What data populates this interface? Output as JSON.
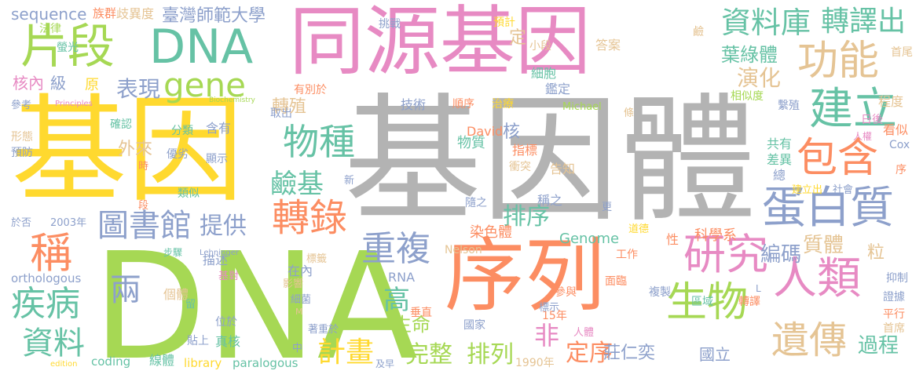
{
  "palette": {
    "gray": "#b3b3b3",
    "yellow": "#ffd92f",
    "green": "#a6d854",
    "orange": "#fc8d62",
    "pink": "#e78ac3",
    "teal": "#66c2a5",
    "blue": "#8da0cb",
    "tan": "#e5c494"
  },
  "words": [
    {
      "text": "基因體",
      "color": "gray"
    },
    {
      "text": "DNA",
      "color": "green"
    },
    {
      "text": "基因",
      "color": "yellow"
    },
    {
      "text": "同源基因",
      "color": "pink"
    },
    {
      "text": "序列",
      "color": "orange"
    },
    {
      "text": "片段",
      "color": "green"
    },
    {
      "text": "DNA",
      "color": "teal"
    },
    {
      "text": "功能",
      "color": "tan"
    },
    {
      "text": "資料庫",
      "color": "teal"
    },
    {
      "text": "轉譯出",
      "color": "teal"
    },
    {
      "text": "建立",
      "color": "teal"
    },
    {
      "text": "gene",
      "color": "green"
    },
    {
      "text": "包含",
      "color": "orange"
    },
    {
      "text": "蛋白質",
      "color": "blue"
    },
    {
      "text": "人類",
      "color": "pink"
    },
    {
      "text": "研究",
      "color": "pink"
    },
    {
      "text": "生物",
      "color": "green"
    },
    {
      "text": "遺傳",
      "color": "tan"
    },
    {
      "text": "轉錄",
      "color": "orange"
    },
    {
      "text": "物種",
      "color": "teal"
    },
    {
      "text": "圖書館",
      "color": "blue"
    },
    {
      "text": "重複",
      "color": "blue"
    },
    {
      "text": "疾病",
      "color": "teal"
    },
    {
      "text": "稱",
      "color": "orange"
    },
    {
      "text": "資料",
      "color": "teal"
    },
    {
      "text": "表現",
      "color": "blue"
    },
    {
      "text": "提供",
      "color": "blue"
    },
    {
      "text": "鹼基",
      "color": "teal"
    },
    {
      "text": "計畫",
      "color": "yellow"
    },
    {
      "text": "完整",
      "color": "green"
    },
    {
      "text": "排列",
      "color": "green"
    },
    {
      "text": "定序",
      "color": "orange"
    },
    {
      "text": "過程",
      "color": "teal"
    },
    {
      "text": "演化",
      "color": "tan"
    },
    {
      "text": "葉綠體",
      "color": "teal"
    },
    {
      "text": "編碼",
      "color": "blue"
    },
    {
      "text": "質體",
      "color": "tan"
    },
    {
      "text": "兩",
      "color": "blue"
    },
    {
      "text": "高",
      "color": "teal"
    },
    {
      "text": "非",
      "color": "pink"
    },
    {
      "text": "排序",
      "color": "teal"
    },
    {
      "text": "生命",
      "color": "green"
    },
    {
      "text": "轉殖",
      "color": "tan"
    },
    {
      "text": "外來",
      "color": "tan"
    },
    {
      "text": "核內",
      "color": "pink"
    },
    {
      "text": "級",
      "color": "blue"
    },
    {
      "text": "原",
      "color": "yellow"
    },
    {
      "text": "臺灣師範大學",
      "color": "blue"
    },
    {
      "text": "sequence",
      "color": "blue"
    },
    {
      "text": "族群",
      "color": "orange"
    },
    {
      "text": "歧異度",
      "color": "tan"
    },
    {
      "text": "法律",
      "color": "green"
    },
    {
      "text": "螢光",
      "color": "teal"
    },
    {
      "text": "定",
      "color": "tan"
    },
    {
      "text": "預計",
      "color": "yellow"
    },
    {
      "text": "小段",
      "color": "tan"
    },
    {
      "text": "挑戰",
      "color": "blue"
    },
    {
      "text": "細胞",
      "color": "teal"
    },
    {
      "text": "鑑定",
      "color": "blue"
    },
    {
      "text": "答案",
      "color": "tan"
    },
    {
      "text": "鹼",
      "color": "tan"
    },
    {
      "text": "首尾",
      "color": "tan"
    },
    {
      "text": "相似度",
      "color": "green"
    },
    {
      "text": "程度",
      "color": "tan"
    },
    {
      "text": "繫殖",
      "color": "blue"
    },
    {
      "text": "日後",
      "color": "pink"
    },
    {
      "text": "看似",
      "color": "orange"
    },
    {
      "text": "人權",
      "color": "pink"
    },
    {
      "text": "Cox",
      "color": "blue"
    },
    {
      "text": "共有",
      "color": "teal"
    },
    {
      "text": "差異",
      "color": "teal"
    },
    {
      "text": "總",
      "color": "blue"
    },
    {
      "text": "序",
      "color": "orange"
    },
    {
      "text": "建立出",
      "color": "yellow"
    },
    {
      "text": "社會",
      "color": "blue"
    },
    {
      "text": "粒",
      "color": "tan"
    },
    {
      "text": "抑制",
      "color": "blue"
    },
    {
      "text": "證據",
      "color": "blue"
    },
    {
      "text": "平行",
      "color": "orange"
    },
    {
      "text": "首席",
      "color": "tan"
    },
    {
      "text": "國立",
      "color": "blue"
    },
    {
      "text": "莊仁奕",
      "color": "blue"
    },
    {
      "text": "1990年",
      "color": "tan"
    },
    {
      "text": "人體",
      "color": "pink"
    },
    {
      "text": "15年",
      "color": "orange"
    },
    {
      "text": "國家",
      "color": "blue"
    },
    {
      "text": "參與",
      "color": "orange"
    },
    {
      "text": "面臨",
      "color": "orange"
    },
    {
      "text": "標示",
      "color": "blue"
    },
    {
      "text": "區域",
      "color": "teal"
    },
    {
      "text": "轉譯",
      "color": "orange"
    },
    {
      "text": "複製",
      "color": "blue"
    },
    {
      "text": "工作",
      "color": "orange"
    },
    {
      "text": "道德",
      "color": "yellow"
    },
    {
      "text": "性",
      "color": "orange"
    },
    {
      "text": "科學系",
      "color": "orange"
    },
    {
      "text": "Genome",
      "color": "teal"
    },
    {
      "text": "染色體",
      "color": "orange"
    },
    {
      "text": "Nelson",
      "color": "tan"
    },
    {
      "text": "Lehninger",
      "color": "blue"
    },
    {
      "text": "RNA",
      "color": "blue"
    },
    {
      "text": "垂直",
      "color": "orange"
    },
    {
      "text": "隨之",
      "color": "blue"
    },
    {
      "text": "稱之",
      "color": "blue"
    },
    {
      "text": "告知",
      "color": "tan"
    },
    {
      "text": "衝突",
      "color": "tan"
    },
    {
      "text": "指標",
      "color": "orange"
    },
    {
      "text": "物質",
      "color": "teal"
    },
    {
      "text": "核",
      "color": "blue"
    },
    {
      "text": "David",
      "color": "orange"
    },
    {
      "text": "Michael",
      "color": "green"
    },
    {
      "text": "治療",
      "color": "yellow"
    },
    {
      "text": "順序",
      "color": "orange"
    },
    {
      "text": "技術",
      "color": "blue"
    },
    {
      "text": "有別於",
      "color": "orange"
    },
    {
      "text": "取出",
      "color": "blue"
    },
    {
      "text": "Biochemistry",
      "color": "green"
    },
    {
      "text": "Principles",
      "color": "pink"
    },
    {
      "text": "參考",
      "color": "blue"
    },
    {
      "text": "形態",
      "color": "tan"
    },
    {
      "text": "預防",
      "color": "blue"
    },
    {
      "text": "確認",
      "color": "teal"
    },
    {
      "text": "分類",
      "color": "teal"
    },
    {
      "text": "含有",
      "color": "blue"
    },
    {
      "text": "優劣",
      "color": "blue"
    },
    {
      "text": "顯示",
      "color": "blue"
    },
    {
      "text": "時",
      "color": "orange"
    },
    {
      "text": "類似",
      "color": "teal"
    },
    {
      "text": "段",
      "color": "orange"
    },
    {
      "text": "2003年",
      "color": "blue"
    },
    {
      "text": "於否",
      "color": "blue"
    },
    {
      "text": "步驟",
      "color": "teal"
    },
    {
      "text": "描述",
      "color": "blue"
    },
    {
      "text": "orthologous",
      "color": "blue"
    },
    {
      "text": "基對",
      "color": "pink"
    },
    {
      "text": "在內",
      "color": "blue"
    },
    {
      "text": "標籤",
      "color": "tan"
    },
    {
      "text": "影響",
      "color": "tan"
    },
    {
      "text": "細菌",
      "color": "blue"
    },
    {
      "text": "個體",
      "color": "tan"
    },
    {
      "text": "留",
      "color": "teal"
    },
    {
      "text": "位於",
      "color": "blue"
    },
    {
      "text": "貼上",
      "color": "blue"
    },
    {
      "text": "真核",
      "color": "teal"
    },
    {
      "text": "線體",
      "color": "teal"
    },
    {
      "text": "中",
      "color": "blue"
    },
    {
      "text": "著重於",
      "color": "blue"
    },
    {
      "text": "coding",
      "color": "teal"
    },
    {
      "text": "library",
      "color": "yellow"
    },
    {
      "text": "paralogous",
      "color": "teal"
    },
    {
      "text": "及早",
      "color": "blue"
    },
    {
      "text": "edition",
      "color": "yellow"
    },
    {
      "text": "新",
      "color": "blue"
    },
    {
      "text": "更",
      "color": "blue"
    },
    {
      "text": "條",
      "color": "tan"
    },
    {
      "text": "M",
      "color": "tan"
    },
    {
      "text": "L",
      "color": "blue"
    }
  ]
}
